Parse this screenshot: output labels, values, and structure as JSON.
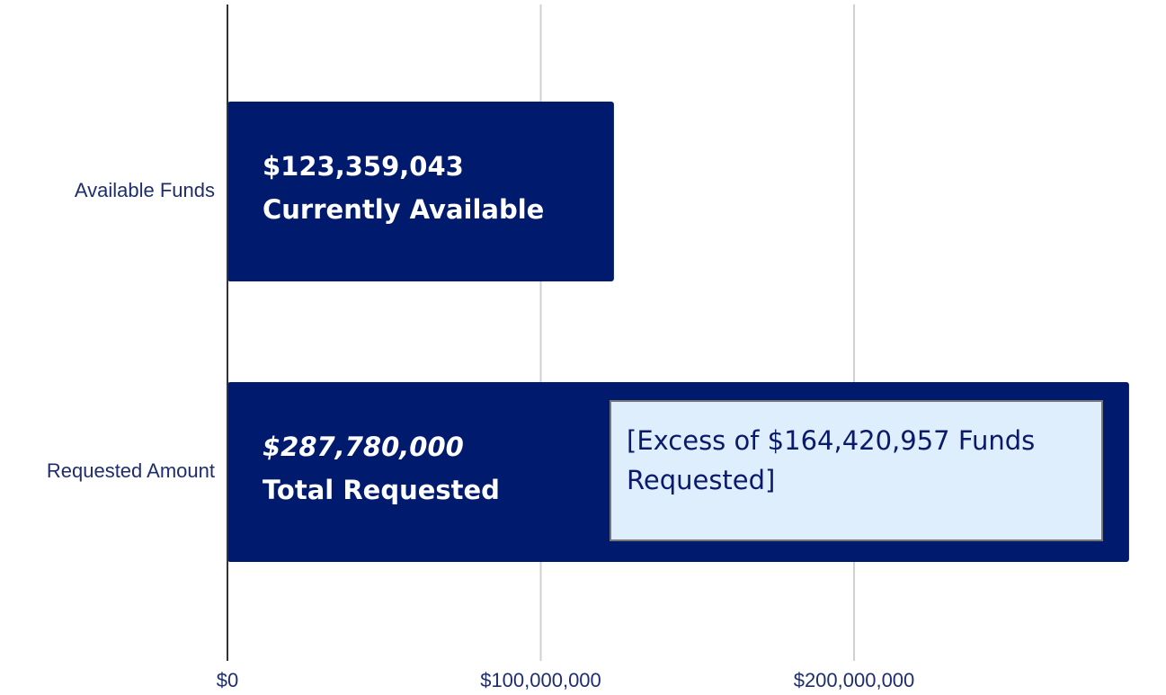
{
  "chart_data": {
    "type": "bar",
    "orientation": "horizontal",
    "categories": [
      "Available Funds",
      "Requested Amount"
    ],
    "values": [
      123359043,
      287780000
    ],
    "value_labels": [
      "$123,359,043",
      "$287,780,000"
    ],
    "bar_labels": [
      "Currently Available",
      "Total Requested"
    ],
    "annotation": "[Excess of $164,420,957 Funds Requested]",
    "color": "#001a6e",
    "xlim": [
      0,
      300000000
    ],
    "xticks": [
      {
        "value": 0,
        "label": "$0"
      },
      {
        "value": 100000000,
        "label": "$100,000,000"
      },
      {
        "value": 200000000,
        "label": "$200,000,000"
      }
    ],
    "grid": true
  }
}
